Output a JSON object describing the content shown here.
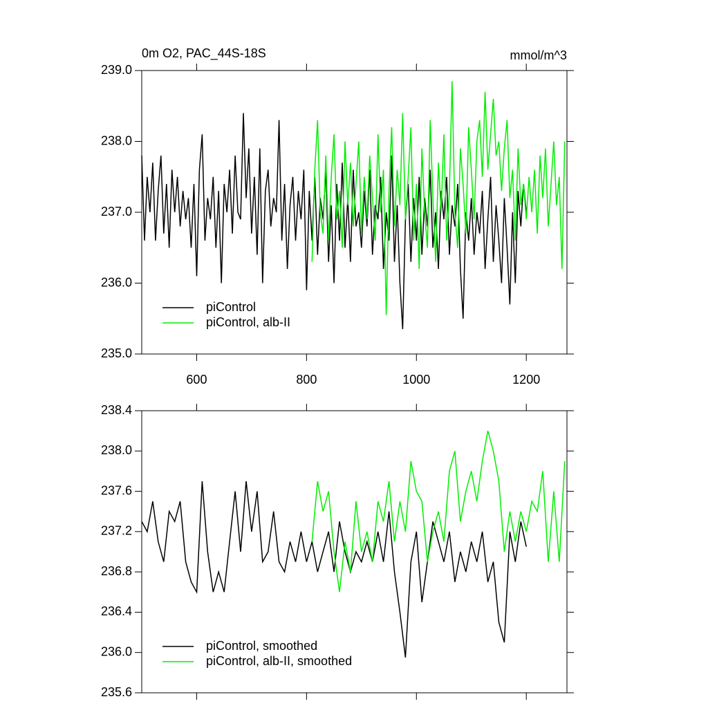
{
  "chart_data": [
    {
      "type": "line",
      "title": "0m O2, PAC_44S-18S",
      "subtitle": "mmol/m^3",
      "xlim": [
        500,
        1274
      ],
      "xticks": [
        600,
        800,
        1000,
        1200
      ],
      "show_xtick_labels": true,
      "ylim": [
        235,
        239
      ],
      "yticks": [
        {
          "value": 235,
          "label": "235.0"
        },
        {
          "value": 236,
          "label": "236.0"
        },
        {
          "value": 237,
          "label": "237.0"
        },
        {
          "value": 238,
          "label": "238.0"
        },
        {
          "value": 239,
          "label": "239.0"
        }
      ],
      "legend": "lower left",
      "series": [
        {
          "name": "piControl",
          "color": "#000000",
          "x": [
            500,
            505,
            510,
            515,
            520,
            525,
            530,
            535,
            540,
            545,
            550,
            555,
            560,
            565,
            570,
            575,
            580,
            585,
            590,
            595,
            600,
            605,
            610,
            615,
            620,
            625,
            630,
            635,
            640,
            645,
            650,
            655,
            660,
            665,
            670,
            675,
            680,
            685,
            690,
            695,
            700,
            705,
            710,
            715,
            720,
            725,
            730,
            735,
            740,
            745,
            750,
            755,
            760,
            765,
            770,
            775,
            780,
            785,
            790,
            795,
            800,
            805,
            810,
            815,
            820,
            825,
            830,
            835,
            840,
            845,
            850,
            855,
            860,
            865,
            870,
            875,
            880,
            885,
            890,
            895,
            900,
            905,
            910,
            915,
            920,
            925,
            930,
            935,
            940,
            945,
            950,
            955,
            960,
            965,
            970,
            975,
            980,
            985,
            990,
            995,
            1000,
            1005,
            1010,
            1015,
            1020,
            1025,
            1030,
            1035,
            1040,
            1045,
            1050,
            1055,
            1060,
            1065,
            1070,
            1075,
            1080,
            1085,
            1090,
            1095,
            1100,
            1105,
            1110,
            1115,
            1120,
            1125,
            1130,
            1135,
            1140,
            1145,
            1150,
            1155,
            1160,
            1165,
            1170,
            1175,
            1180,
            1185,
            1190,
            1195,
            1200
          ],
          "values": [
            237.8,
            236.6,
            237.5,
            237.0,
            237.7,
            236.6,
            237.3,
            237.8,
            236.7,
            237.4,
            236.5,
            237.6,
            237.0,
            237.5,
            236.8,
            237.3,
            236.9,
            237.2,
            236.5,
            237.4,
            236.1,
            237.6,
            238.1,
            236.6,
            237.2,
            236.9,
            237.5,
            236.5,
            237.3,
            236.0,
            237.4,
            237.0,
            237.6,
            236.7,
            237.8,
            237.0,
            236.9,
            238.4,
            237.2,
            237.9,
            236.7,
            237.5,
            236.4,
            237.9,
            236.0,
            237.3,
            237.6,
            236.8,
            237.2,
            237.0,
            238.3,
            236.6,
            237.4,
            236.2,
            237.1,
            237.5,
            236.6,
            237.3,
            236.9,
            237.6,
            235.9,
            237.3,
            236.6,
            237.5,
            236.4,
            237.2,
            236.9,
            237.6,
            236.3,
            237.1,
            236.0,
            237.4,
            236.6,
            237.7,
            236.5,
            237.2,
            236.3,
            237.6,
            236.8,
            237.0,
            236.5,
            237.3,
            236.8,
            237.6,
            236.4,
            237.1,
            236.9,
            237.5,
            236.2,
            237.0,
            236.6,
            237.8,
            236.3,
            237.1,
            236.0,
            235.35,
            236.9,
            237.4,
            236.3,
            237.2,
            236.6,
            237.5,
            236.4,
            237.2,
            236.8,
            237.6,
            236.5,
            237.0,
            236.2,
            237.3,
            236.9,
            237.5,
            236.4,
            237.1,
            236.8,
            237.4,
            236.2,
            235.5,
            237.0,
            236.6,
            237.2,
            236.4,
            237.0,
            236.7,
            237.3,
            236.2,
            236.9,
            237.5,
            236.3,
            237.1,
            236.6,
            236.0,
            237.2,
            236.5,
            235.7,
            237.0,
            236.0,
            237.3,
            236.8,
            237.4,
            237.0
          ]
        },
        {
          "name": "piControl, alb-II",
          "color": "#00ee00",
          "x": [
            810,
            815,
            820,
            825,
            830,
            835,
            840,
            845,
            850,
            855,
            860,
            865,
            870,
            875,
            880,
            885,
            890,
            895,
            900,
            905,
            910,
            915,
            920,
            925,
            930,
            935,
            940,
            945,
            950,
            955,
            960,
            965,
            970,
            975,
            980,
            985,
            990,
            995,
            1000,
            1005,
            1010,
            1015,
            1020,
            1025,
            1030,
            1035,
            1040,
            1045,
            1050,
            1055,
            1060,
            1065,
            1070,
            1075,
            1080,
            1085,
            1090,
            1095,
            1100,
            1105,
            1110,
            1115,
            1120,
            1125,
            1130,
            1135,
            1140,
            1145,
            1150,
            1155,
            1160,
            1165,
            1170,
            1175,
            1180,
            1185,
            1190,
            1195,
            1200,
            1205,
            1210,
            1215,
            1220,
            1225,
            1230,
            1235,
            1240,
            1245,
            1250,
            1255,
            1260,
            1265,
            1270
          ],
          "values": [
            236.3,
            237.6,
            238.3,
            237.0,
            236.7,
            237.8,
            236.6,
            237.5,
            238.1,
            236.9,
            237.3,
            236.5,
            238.0,
            237.1,
            237.7,
            236.8,
            237.4,
            238.0,
            236.7,
            237.5,
            236.9,
            237.8,
            237.2,
            236.6,
            238.1,
            237.0,
            237.6,
            235.55,
            237.3,
            238.2,
            236.8,
            237.6,
            237.1,
            238.4,
            236.9,
            237.5,
            238.2,
            236.6,
            237.4,
            236.2,
            237.9,
            237.0,
            236.5,
            238.3,
            237.2,
            236.3,
            237.7,
            237.0,
            238.1,
            236.6,
            237.3,
            238.85,
            237.0,
            236.5,
            237.9,
            237.4,
            236.7,
            238.2,
            237.6,
            236.9,
            238.0,
            238.3,
            237.5,
            238.7,
            237.6,
            238.1,
            238.6,
            237.8,
            238.0,
            237.3,
            237.9,
            238.3,
            237.2,
            237.6,
            236.6,
            237.9,
            237.1,
            237.4,
            236.9,
            237.5,
            237.0,
            237.6,
            236.7,
            237.8,
            237.2,
            237.9,
            236.8,
            237.4,
            238.0,
            237.1,
            237.5,
            236.2,
            238.0
          ]
        }
      ]
    },
    {
      "type": "line",
      "xlim": [
        500,
        1274
      ],
      "xticks": [
        600,
        800,
        1000,
        1200
      ],
      "show_xtick_labels": false,
      "ylim": [
        235.6,
        238.4
      ],
      "yticks": [
        235.6,
        {
          "value": 236,
          "label": "236.0"
        },
        236.4,
        236.8,
        237.2,
        237.6,
        {
          "value": 238,
          "label": "238.0"
        },
        238.4
      ],
      "legend": "lower left",
      "series": [
        {
          "name": "piControl, smoothed",
          "color": "#000000",
          "x": [
            500,
            510,
            520,
            530,
            540,
            550,
            560,
            570,
            580,
            590,
            600,
            610,
            620,
            630,
            640,
            650,
            660,
            670,
            680,
            690,
            700,
            710,
            720,
            730,
            740,
            750,
            760,
            770,
            780,
            790,
            800,
            810,
            820,
            830,
            840,
            850,
            860,
            870,
            880,
            890,
            900,
            910,
            920,
            930,
            940,
            950,
            960,
            970,
            980,
            990,
            1000,
            1010,
            1020,
            1030,
            1040,
            1050,
            1060,
            1070,
            1080,
            1090,
            1100,
            1110,
            1120,
            1130,
            1140,
            1150,
            1160,
            1170,
            1180,
            1190,
            1200
          ],
          "values": [
            237.3,
            237.2,
            237.5,
            237.1,
            236.9,
            237.4,
            237.3,
            237.5,
            236.9,
            236.7,
            236.6,
            237.7,
            237.0,
            236.6,
            236.8,
            236.6,
            237.1,
            237.6,
            237.0,
            237.7,
            237.2,
            237.6,
            236.9,
            237.0,
            237.4,
            236.9,
            236.8,
            237.1,
            236.9,
            237.2,
            236.9,
            237.1,
            236.8,
            237.0,
            237.2,
            236.8,
            237.3,
            237.0,
            236.8,
            237.0,
            236.9,
            237.1,
            236.9,
            237.2,
            236.9,
            237.4,
            236.8,
            236.4,
            235.95,
            236.9,
            237.2,
            236.5,
            236.9,
            237.3,
            237.1,
            236.9,
            237.2,
            236.7,
            237.0,
            236.8,
            237.1,
            236.9,
            237.2,
            236.7,
            236.9,
            236.3,
            236.1,
            237.2,
            236.9,
            237.3,
            237.05
          ]
        },
        {
          "name": "piControl, alb-II, smoothed",
          "color": "#00ee00",
          "x": [
            810,
            820,
            830,
            840,
            850,
            860,
            870,
            880,
            890,
            900,
            910,
            920,
            930,
            940,
            950,
            960,
            970,
            980,
            990,
            1000,
            1010,
            1020,
            1030,
            1040,
            1050,
            1060,
            1070,
            1080,
            1090,
            1100,
            1110,
            1120,
            1130,
            1140,
            1150,
            1160,
            1170,
            1180,
            1190,
            1200,
            1210,
            1220,
            1230,
            1240,
            1250,
            1260,
            1270
          ],
          "values": [
            237.1,
            237.7,
            237.4,
            237.6,
            237.0,
            236.6,
            237.1,
            236.8,
            237.5,
            237.0,
            237.2,
            236.9,
            237.5,
            237.3,
            237.7,
            237.1,
            237.5,
            237.2,
            237.9,
            237.6,
            237.5,
            236.9,
            237.2,
            237.4,
            237.1,
            237.8,
            238.0,
            237.3,
            237.6,
            237.8,
            237.5,
            237.9,
            238.2,
            238.0,
            237.7,
            237.0,
            237.4,
            237.1,
            237.4,
            237.2,
            237.5,
            237.4,
            237.8,
            236.9,
            237.6,
            236.9,
            237.9
          ]
        }
      ]
    }
  ]
}
